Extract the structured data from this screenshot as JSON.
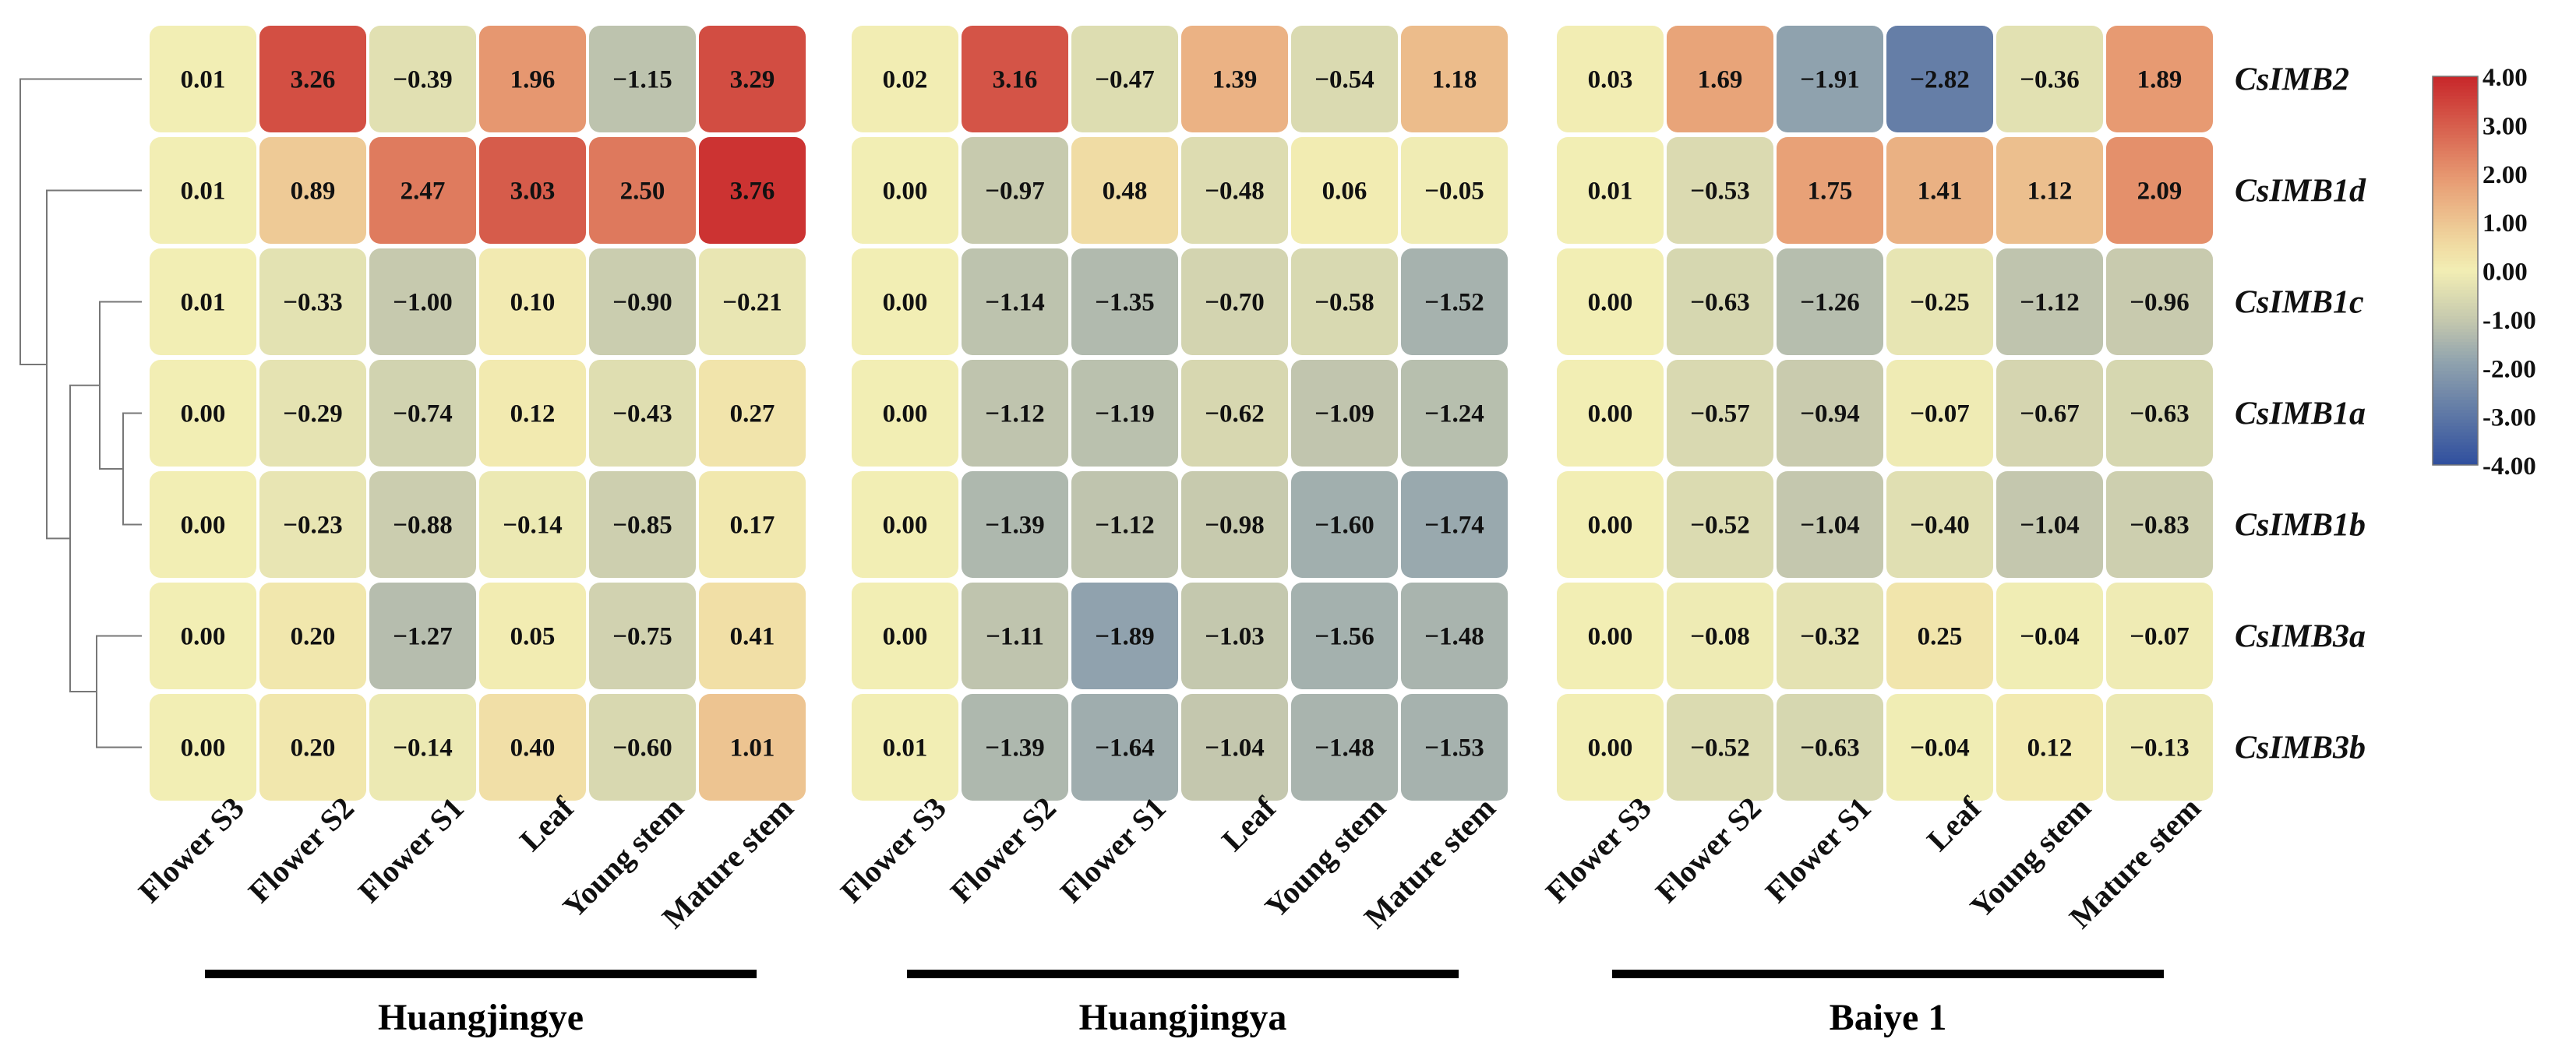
{
  "chart_data": {
    "type": "heatmap",
    "title": "",
    "genes": [
      "CsIMB2",
      "CsIMB1d",
      "CsIMB1c",
      "CsIMB1a",
      "CsIMB1b",
      "CsIMB3a",
      "CsIMB3b"
    ],
    "tissues": [
      "Flower S3",
      "Flower S2",
      "Flower S1",
      "Leaf",
      "Young stem",
      "Mature stem"
    ],
    "cultivars": [
      {
        "name": "Huangjingye",
        "values": [
          [
            0.01,
            3.26,
            -0.39,
            1.96,
            -1.15,
            3.29
          ],
          [
            0.01,
            0.89,
            2.47,
            3.03,
            2.5,
            3.76
          ],
          [
            0.01,
            -0.33,
            -1.0,
            0.1,
            -0.9,
            -0.21
          ],
          [
            0.0,
            -0.29,
            -0.74,
            0.12,
            -0.43,
            0.27
          ],
          [
            0.0,
            -0.23,
            -0.88,
            -0.14,
            -0.85,
            0.17
          ],
          [
            0.0,
            0.2,
            -1.27,
            0.05,
            -0.75,
            0.41
          ],
          [
            0.0,
            0.2,
            -0.14,
            0.4,
            -0.6,
            1.01
          ]
        ]
      },
      {
        "name": "Huangjingya",
        "values": [
          [
            0.02,
            3.16,
            -0.47,
            1.39,
            -0.54,
            1.18
          ],
          [
            0.0,
            -0.97,
            0.48,
            -0.48,
            0.06,
            -0.05
          ],
          [
            0.0,
            -1.14,
            -1.35,
            -0.7,
            -0.58,
            -1.52
          ],
          [
            0.0,
            -1.12,
            -1.19,
            -0.62,
            -1.09,
            -1.24
          ],
          [
            0.0,
            -1.39,
            -1.12,
            -0.98,
            -1.6,
            -1.74
          ],
          [
            0.0,
            -1.11,
            -1.89,
            -1.03,
            -1.56,
            -1.48
          ],
          [
            0.01,
            -1.39,
            -1.64,
            -1.04,
            -1.48,
            -1.53
          ]
        ]
      },
      {
        "name": "Baiye 1",
        "values": [
          [
            0.03,
            1.69,
            -1.91,
            -2.82,
            -0.36,
            1.89
          ],
          [
            0.01,
            -0.53,
            1.75,
            1.41,
            1.12,
            2.09
          ],
          [
            0.0,
            -0.63,
            -1.26,
            -0.25,
            -1.12,
            -0.96
          ],
          [
            0.0,
            -0.57,
            -0.94,
            -0.07,
            -0.67,
            -0.63
          ],
          [
            0.0,
            -0.52,
            -1.04,
            -0.4,
            -1.04,
            -0.83
          ],
          [
            0.0,
            -0.08,
            -0.32,
            0.25,
            -0.04,
            -0.07
          ],
          [
            0.0,
            -0.52,
            -0.63,
            -0.04,
            0.12,
            -0.13
          ]
        ]
      }
    ],
    "colorbar": {
      "range": [
        -4,
        4
      ],
      "ticks": [
        "4.00",
        "3.00",
        "2.00",
        "1.00",
        "0.00",
        "-1.00",
        "-2.00",
        "-3.00",
        "-4.00"
      ],
      "colors": {
        "high": "#c8262a",
        "upper_mid": "#e79a72",
        "mid_warm": "#f0d8a0",
        "zero": "#f2eeb4",
        "lower_mid": "#c6c9ae",
        "cool": "#8fa2ae",
        "low": "#2f4f9e"
      }
    },
    "dendrogram": {
      "type": "row clustering tree",
      "leaves": [
        "CsIMB2",
        "CsIMB1d",
        "CsIMB1c",
        "CsIMB1a",
        "CsIMB1b",
        "CsIMB3a",
        "CsIMB3b"
      ]
    }
  }
}
